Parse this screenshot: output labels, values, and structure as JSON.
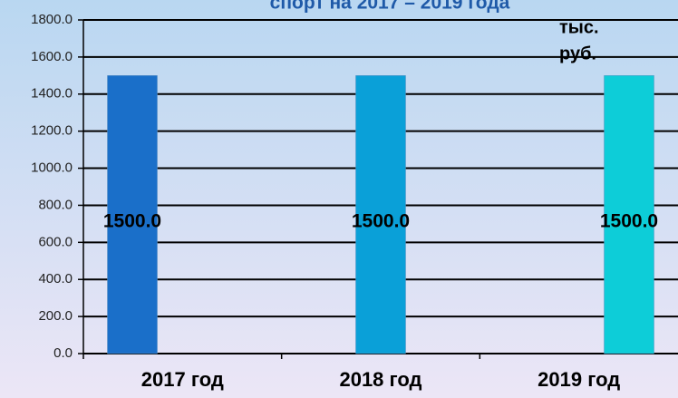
{
  "chart_data": {
    "type": "bar",
    "title": "спорт на 2017 – 2019 года",
    "unit_label": [
      "тыс.",
      "руб."
    ],
    "categories": [
      "2017 год",
      "2018 год",
      "2019 год"
    ],
    "values": [
      1500,
      1500,
      1500
    ],
    "value_labels": [
      "1500.0",
      "1500.0",
      "1500.0"
    ],
    "colors": [
      "#1a6fc9",
      "#0aa0d8",
      "#0dcdd8"
    ],
    "ylim": [
      0,
      1800
    ],
    "yticks": [
      {
        "value": 0,
        "label": "0.0"
      },
      {
        "value": 200,
        "label": "200.0"
      },
      {
        "value": 400,
        "label": "400.0"
      },
      {
        "value": 600,
        "label": "600.0"
      },
      {
        "value": 800,
        "label": "800.0"
      },
      {
        "value": 1000,
        "label": "1000.0"
      },
      {
        "value": 1200,
        "label": "1200.0"
      },
      {
        "value": 1400,
        "label": "1400.0"
      },
      {
        "value": 1600,
        "label": "1600.0"
      },
      {
        "value": 1800,
        "label": "1800.0"
      }
    ],
    "grid": true
  }
}
